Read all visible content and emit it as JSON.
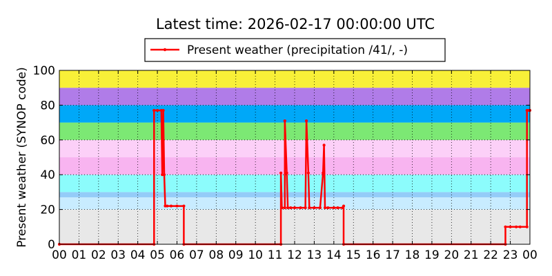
{
  "chart_data": {
    "type": "line",
    "title": "Latest time: 2026-02-17 00:00:00 UTC",
    "ylabel": "Present weather (SYNOP code)",
    "xlabel": "",
    "ylim": [
      0,
      100
    ],
    "yticks": [
      0,
      20,
      40,
      60,
      80,
      100
    ],
    "xlim": [
      0,
      24
    ],
    "xticks": [
      "00",
      "01",
      "02",
      "03",
      "04",
      "05",
      "06",
      "07",
      "08",
      "09",
      "10",
      "11",
      "12",
      "13",
      "14",
      "15",
      "16",
      "17",
      "18",
      "19",
      "20",
      "21",
      "22",
      "23",
      "00"
    ],
    "grid": true,
    "legend_position": "top-center",
    "bands": [
      {
        "from": 0,
        "to": 20,
        "color": "#e8e8e8"
      },
      {
        "from": 20,
        "to": 27,
        "color": "#c8ecff"
      },
      {
        "from": 27,
        "to": 30,
        "color": "#94ccf8"
      },
      {
        "from": 30,
        "to": 40,
        "color": "#8cfcfc"
      },
      {
        "from": 40,
        "to": 50,
        "color": "#f8b4f0"
      },
      {
        "from": 50,
        "to": 60,
        "color": "#fcd0f8"
      },
      {
        "from": 60,
        "to": 70,
        "color": "#7ce874"
      },
      {
        "from": 70,
        "to": 80,
        "color": "#00a8f8"
      },
      {
        "from": 80,
        "to": 90,
        "color": "#b07ce8"
      },
      {
        "from": 90,
        "to": 100,
        "color": "#f8f038"
      }
    ],
    "series": [
      {
        "name": "Present weather (precipitation /41/, -)",
        "color": "#ff0000",
        "x": [
          0,
          4.83,
          4.83,
          5.0,
          5.2,
          5.25,
          5.3,
          5.35,
          5.4,
          5.5,
          5.7,
          6.0,
          6.35,
          6.35,
          11.3,
          11.3,
          11.35,
          11.5,
          11.5,
          11.6,
          11.65,
          11.8,
          12.0,
          12.3,
          12.55,
          12.6,
          12.7,
          12.75,
          13.0,
          13.3,
          13.45,
          13.5,
          13.55,
          13.7,
          14.0,
          14.2,
          14.45,
          14.5,
          14.5,
          22.75,
          22.75,
          23.0,
          23.3,
          23.5,
          23.85,
          23.85,
          23.95,
          24.0
        ],
        "values": [
          0,
          0,
          77,
          77,
          77,
          40,
          77,
          40,
          22,
          22,
          22,
          22,
          22,
          0,
          0,
          41,
          21,
          21,
          71,
          41,
          21,
          21,
          21,
          21,
          21,
          71,
          41,
          21,
          21,
          21,
          41,
          57,
          21,
          21,
          21,
          21,
          21,
          22,
          0,
          0,
          10,
          10,
          10,
          10,
          10,
          77,
          77,
          77
        ]
      }
    ]
  }
}
